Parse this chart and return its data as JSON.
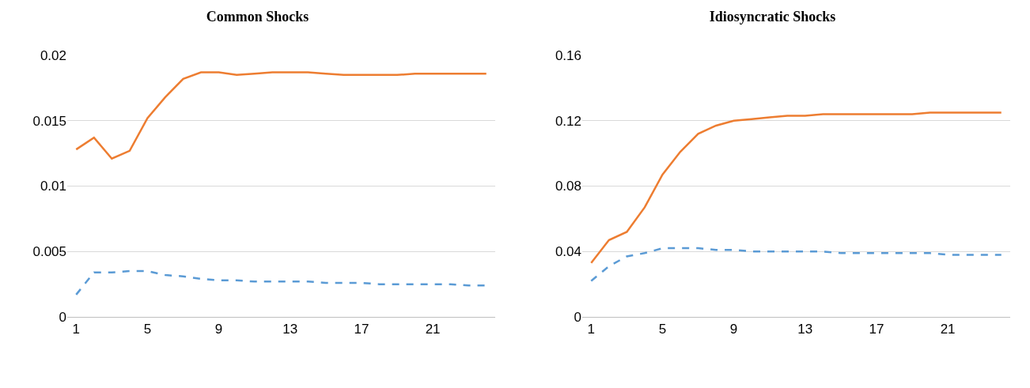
{
  "chart_data": [
    {
      "type": "line",
      "title": "Common Shocks",
      "x": [
        1,
        2,
        3,
        4,
        5,
        6,
        7,
        8,
        9,
        10,
        11,
        12,
        13,
        14,
        15,
        16,
        17,
        18,
        19,
        20,
        21,
        22,
        23,
        24
      ],
      "series": [
        {
          "color": "#5b9bd5",
          "line_style": "dashed",
          "values": [
            0.0017,
            0.0034,
            0.0034,
            0.0035,
            0.0035,
            0.0032,
            0.0031,
            0.0029,
            0.0028,
            0.0028,
            0.0027,
            0.0027,
            0.0027,
            0.0027,
            0.0026,
            0.0026,
            0.0026,
            0.0025,
            0.0025,
            0.0025,
            0.0025,
            0.0025,
            0.0024,
            0.0024
          ]
        },
        {
          "color": "#ed7d31",
          "line_style": "solid",
          "values": [
            0.0128,
            0.0137,
            0.0121,
            0.0127,
            0.0152,
            0.0168,
            0.0182,
            0.0187,
            0.0187,
            0.0185,
            0.0186,
            0.0187,
            0.0187,
            0.0187,
            0.0186,
            0.0185,
            0.0185,
            0.0185,
            0.0185,
            0.0186,
            0.0186,
            0.0186,
            0.0186,
            0.0186
          ]
        }
      ],
      "xlim": [
        0.5,
        24.5
      ],
      "xticks": [
        1,
        5,
        9,
        13,
        17,
        21
      ],
      "ylim": [
        0,
        0.02
      ],
      "yticks": [
        0,
        0.005,
        0.01,
        0.015,
        0.02
      ],
      "grid": "y",
      "marker": "none"
    },
    {
      "type": "line",
      "title": "Idiosyncratic Shocks",
      "x": [
        1,
        2,
        3,
        4,
        5,
        6,
        7,
        8,
        9,
        10,
        11,
        12,
        13,
        14,
        15,
        16,
        17,
        18,
        19,
        20,
        21,
        22,
        23,
        24
      ],
      "series": [
        {
          "color": "#5b9bd5",
          "line_style": "dashed",
          "values": [
            0.022,
            0.031,
            0.037,
            0.039,
            0.042,
            0.042,
            0.042,
            0.041,
            0.041,
            0.04,
            0.04,
            0.04,
            0.04,
            0.04,
            0.039,
            0.039,
            0.039,
            0.039,
            0.039,
            0.039,
            0.038,
            0.038,
            0.038,
            0.038
          ]
        },
        {
          "color": "#ed7d31",
          "line_style": "solid",
          "values": [
            0.033,
            0.047,
            0.052,
            0.067,
            0.087,
            0.101,
            0.112,
            0.117,
            0.12,
            0.121,
            0.122,
            0.123,
            0.123,
            0.124,
            0.124,
            0.124,
            0.124,
            0.124,
            0.124,
            0.125,
            0.125,
            0.125,
            0.125,
            0.125
          ]
        }
      ],
      "xlim": [
        0.5,
        24.5
      ],
      "xticks": [
        1,
        5,
        9,
        13,
        17,
        21
      ],
      "ylim": [
        0,
        0.16
      ],
      "yticks": [
        0,
        0.04,
        0.08,
        0.12,
        0.16
      ],
      "grid": "y",
      "marker": "none"
    }
  ]
}
